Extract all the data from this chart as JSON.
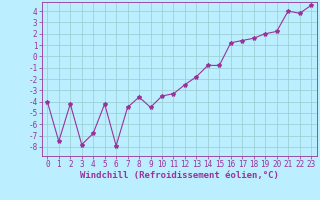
{
  "x": [
    0,
    1,
    2,
    3,
    4,
    5,
    6,
    7,
    8,
    9,
    10,
    11,
    12,
    13,
    14,
    15,
    16,
    17,
    18,
    19,
    20,
    21,
    22,
    23
  ],
  "y": [
    -4.0,
    -7.5,
    -4.2,
    -7.8,
    -6.8,
    -4.2,
    -7.9,
    -4.5,
    -3.6,
    -4.5,
    -3.5,
    -3.3,
    -2.5,
    -1.8,
    -0.8,
    -0.8,
    1.2,
    1.4,
    1.6,
    2.0,
    2.2,
    4.0,
    3.8,
    4.5
  ],
  "line_color": "#993399",
  "marker": "*",
  "bg_color": "#bbeeff",
  "grid_color": "#99cccc",
  "xlabel": "Windchill (Refroidissement éolien,°C)",
  "xlim": [
    -0.5,
    23.5
  ],
  "ylim": [
    -8.8,
    4.8
  ],
  "yticks": [
    -8,
    -7,
    -6,
    -5,
    -4,
    -3,
    -2,
    -1,
    0,
    1,
    2,
    3,
    4
  ],
  "xticks": [
    0,
    1,
    2,
    3,
    4,
    5,
    6,
    7,
    8,
    9,
    10,
    11,
    12,
    13,
    14,
    15,
    16,
    17,
    18,
    19,
    20,
    21,
    22,
    23
  ],
  "xlabel_fontsize": 6.5,
  "tick_fontsize": 5.5,
  "marker_size": 3,
  "line_width": 0.8
}
